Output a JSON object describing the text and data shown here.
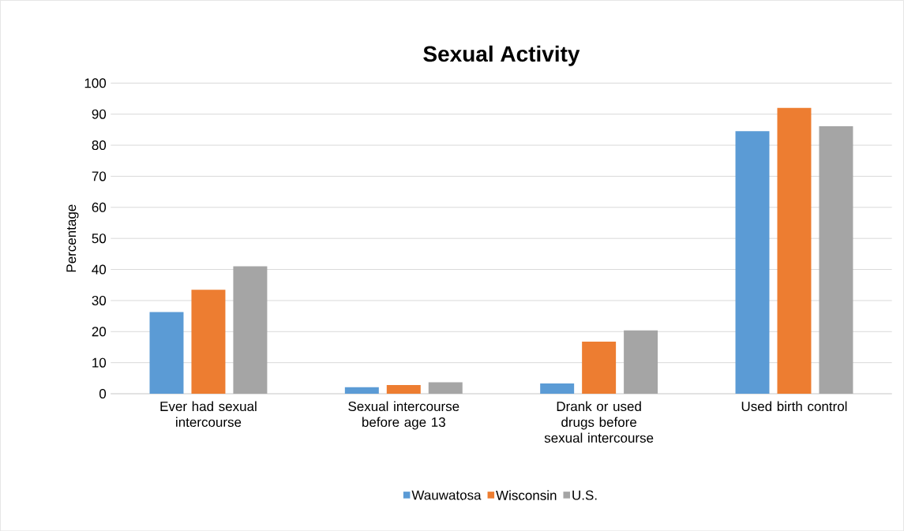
{
  "chart_data": {
    "type": "bar",
    "title": "Sexual Activity",
    "ylabel": "Percentage",
    "categories": [
      "Ever had sexual intercourse",
      "Sexual intercourse before age 13",
      "Drank or used drugs before sexual intercourse",
      "Used birth control"
    ],
    "series": [
      {
        "name": "Wauwatosa",
        "color": "#5b9bd5",
        "values": [
          26.3,
          2.1,
          3.3,
          84.5
        ]
      },
      {
        "name": "Wisconsin",
        "color": "#ed7d31",
        "values": [
          33.5,
          2.8,
          16.8,
          92.0
        ]
      },
      {
        "name": "U.S.",
        "color": "#a5a5a5",
        "values": [
          41.0,
          3.7,
          20.4,
          86.1
        ]
      }
    ],
    "ylim": [
      0,
      100
    ],
    "yticks": [
      0,
      10,
      20,
      30,
      40,
      50,
      60,
      70,
      80,
      90,
      100
    ],
    "grid": "y",
    "legend": "bottom"
  }
}
